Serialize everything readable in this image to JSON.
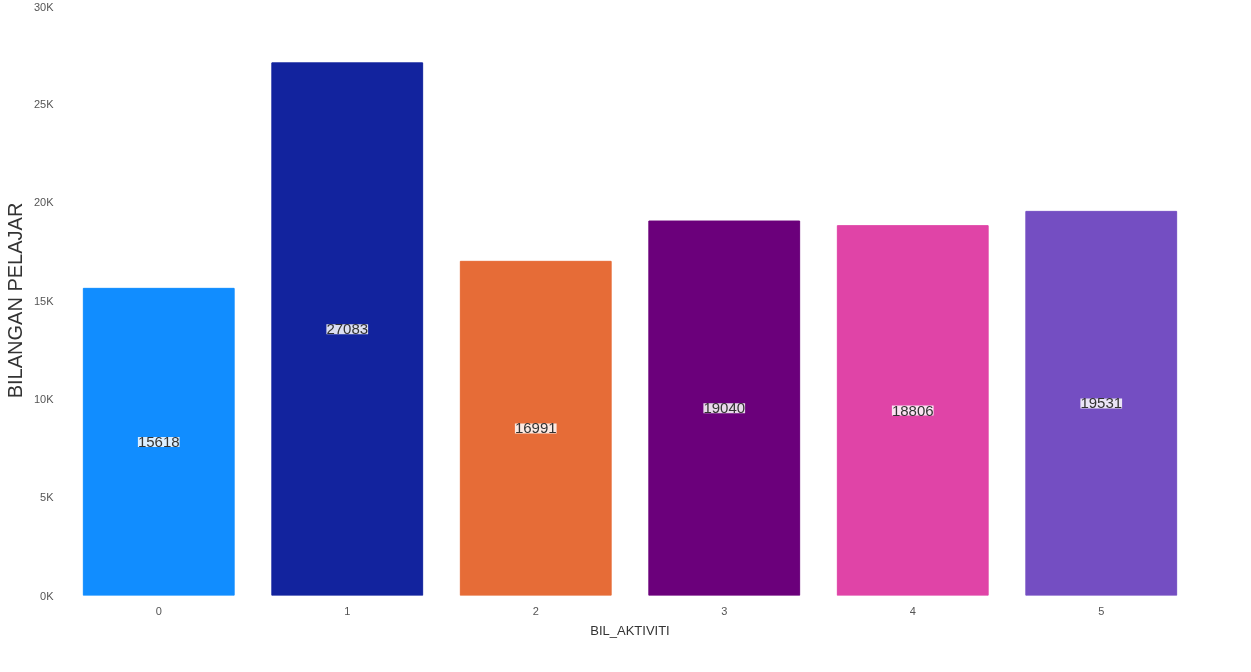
{
  "chart_data": {
    "type": "bar",
    "xlabel": "BIL_AKTIVITI",
    "ylabel": "BILANGAN PELAJAR",
    "categories": [
      "0",
      "1",
      "2",
      "3",
      "4",
      "5"
    ],
    "values": [
      15618,
      27083,
      16991,
      19040,
      18806,
      19531
    ],
    "colors": [
      "#118dff",
      "#12239e",
      "#e66c37",
      "#6b007b",
      "#e044a7",
      "#744ec2"
    ],
    "ylim": [
      0,
      30000
    ],
    "yticks": [
      {
        "value": 0,
        "label": "0K"
      },
      {
        "value": 5000,
        "label": "5K"
      },
      {
        "value": 10000,
        "label": "10K"
      },
      {
        "value": 15000,
        "label": "15K"
      },
      {
        "value": 20000,
        "label": "20K"
      },
      {
        "value": 25000,
        "label": "25K"
      },
      {
        "value": 30000,
        "label": "30K"
      }
    ],
    "data_labels": true,
    "grid": false
  }
}
